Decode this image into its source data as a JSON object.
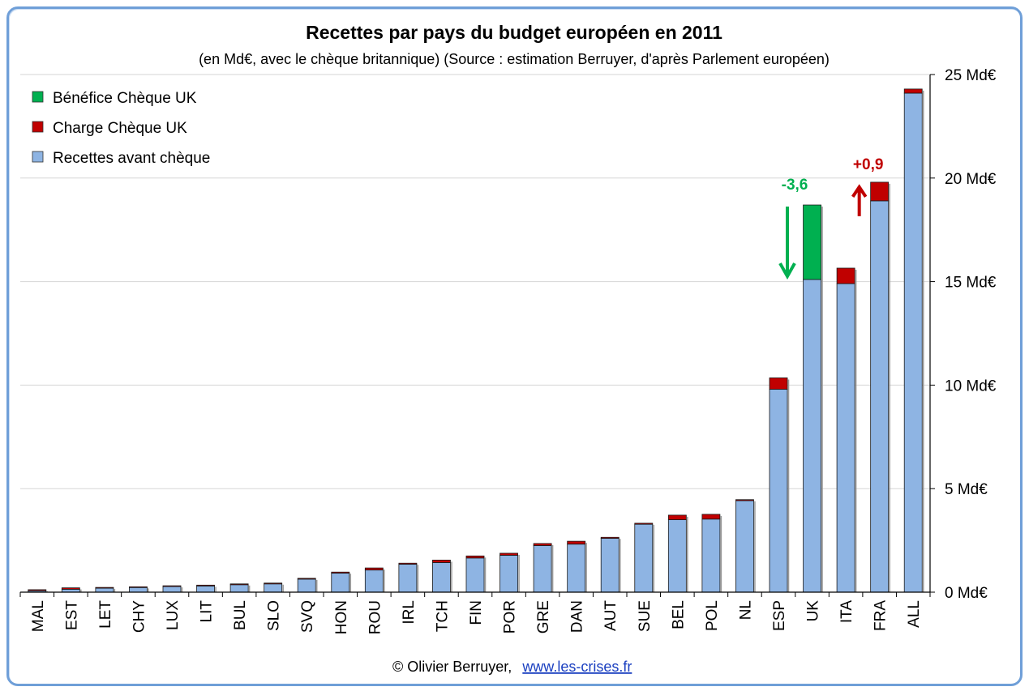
{
  "title": "Recettes par pays du budget européen en 2011",
  "subtitle": "(en Md€, avec le chèque britannique) (Source : estimation Berruyer, d'après Parlement européen)",
  "legend": [
    {
      "label": "Bénéfice Chèque UK",
      "color": "#00b050"
    },
    {
      "label": "Charge Chèque UK",
      "color": "#c00000"
    },
    {
      "label": "Recettes avant chèque",
      "color": "#8eb4e3"
    }
  ],
  "annotations": {
    "uk": {
      "text": "-3,6",
      "color": "#00b050"
    },
    "fra": {
      "text": "+0,9",
      "color": "#c00000"
    }
  },
  "footer": {
    "credit": "© Olivier Berruyer,",
    "link": "www.les-crises.fr"
  },
  "chart_data": {
    "type": "bar",
    "stacked": true,
    "categories": [
      "MAL",
      "EST",
      "LET",
      "CHY",
      "LUX",
      "LIT",
      "BUL",
      "SLO",
      "SVQ",
      "HON",
      "ROU",
      "IRL",
      "TCH",
      "FIN",
      "POR",
      "GRE",
      "DAN",
      "AUT",
      "SUE",
      "BEL",
      "POL",
      "NL",
      "ESP",
      "UK",
      "ITA",
      "FRA",
      "ALL"
    ],
    "series": [
      {
        "name": "Recettes avant chèque",
        "color": "#8eb4e3",
        "values": [
          0.07,
          0.14,
          0.2,
          0.23,
          0.27,
          0.3,
          0.36,
          0.4,
          0.63,
          0.92,
          1.07,
          1.35,
          1.43,
          1.65,
          1.78,
          2.25,
          2.32,
          2.6,
          3.28,
          3.5,
          3.53,
          4.42,
          9.8,
          15.1,
          14.9,
          18.9,
          24.1
        ]
      },
      {
        "name": "Charge Chèque UK",
        "color": "#c00000",
        "values": [
          0.05,
          0.07,
          0.03,
          0.03,
          0.04,
          0.04,
          0.04,
          0.04,
          0.04,
          0.05,
          0.1,
          0.05,
          0.12,
          0.1,
          0.1,
          0.1,
          0.14,
          0.05,
          0.05,
          0.22,
          0.23,
          0.05,
          0.55,
          0,
          0.75,
          0.9,
          0.2
        ]
      },
      {
        "name": "Bénéfice Chèque UK",
        "color": "#00b050",
        "values": [
          0,
          0,
          0,
          0,
          0,
          0,
          0,
          0,
          0,
          0,
          0,
          0,
          0,
          0,
          0,
          0,
          0,
          0,
          0,
          0,
          0,
          0,
          0,
          3.6,
          0,
          0,
          0
        ]
      }
    ],
    "y_axis": {
      "min": 0,
      "max": 25,
      "step": 5,
      "position": "right",
      "tick_labels": [
        "0 Md€",
        "5 Md€",
        "10 Md€",
        "15 Md€",
        "20 Md€",
        "25 Md€"
      ]
    },
    "grid": true,
    "legend_position": "top-left"
  }
}
